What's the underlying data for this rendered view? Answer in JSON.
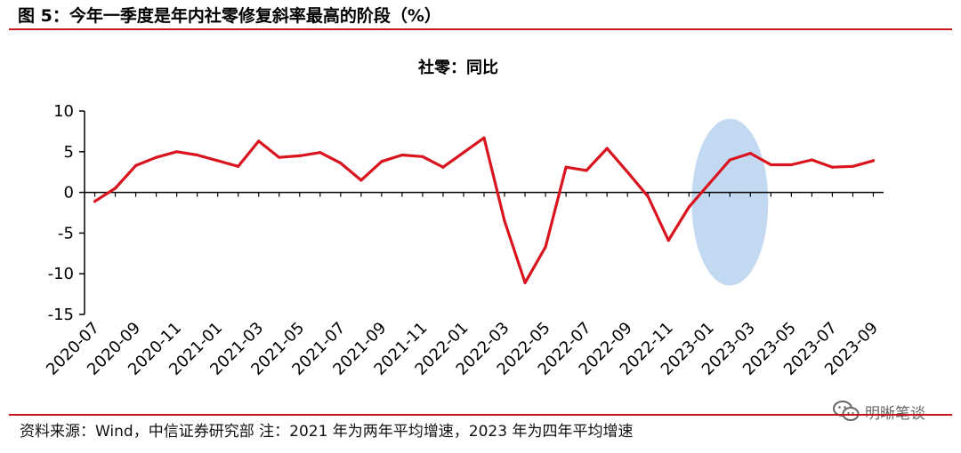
{
  "figure": {
    "title": "图 5：今年一季度是年内社零修复斜率最高的阶段（%）",
    "source": "资料来源：Wind，中信证券研究部  注：2021 年为两年平均增速，2023 年为四年平均增速",
    "watermark": "明晰笔谈",
    "accent_color": "#c8161d",
    "highlight_color": "#bcd5ef"
  },
  "chart_data": {
    "type": "line",
    "title": "社零：同比",
    "xlabel": "",
    "ylabel": "",
    "ylim": [
      -15,
      10
    ],
    "yticks": [
      10,
      5,
      0,
      -5,
      -10,
      -15
    ],
    "grid": false,
    "legend": "none",
    "x": [
      "2020-07",
      "2020-08",
      "2020-09",
      "2020-10",
      "2020-11",
      "2020-12",
      "2021-01",
      "2021-02",
      "2021-03",
      "2021-04",
      "2021-05",
      "2021-06",
      "2021-07",
      "2021-08",
      "2021-09",
      "2021-10",
      "2021-11",
      "2021-12",
      "2022-01",
      "2022-02",
      "2022-03",
      "2022-04",
      "2022-05",
      "2022-06",
      "2022-07",
      "2022-08",
      "2022-09",
      "2022-10",
      "2022-11",
      "2022-12",
      "2023-01",
      "2023-02",
      "2023-03",
      "2023-04",
      "2023-05",
      "2023-06",
      "2023-07",
      "2023-08",
      "2023-09"
    ],
    "xtick_labels": [
      "2020-07",
      "2020-09",
      "2020-11",
      "2021-01",
      "2021-03",
      "2021-05",
      "2021-07",
      "2021-09",
      "2021-11",
      "2022-01",
      "2022-03",
      "2022-05",
      "2022-07",
      "2022-09",
      "2022-11",
      "2023-01",
      "2023-03",
      "2023-05",
      "2023-07",
      "2023-09"
    ],
    "series": [
      {
        "color": "#d9141e",
        "values": [
          -1.1,
          0.5,
          3.3,
          4.3,
          5.0,
          4.6,
          3.9,
          3.2,
          6.3,
          4.3,
          4.5,
          4.9,
          3.6,
          1.5,
          3.8,
          4.6,
          4.4,
          3.1,
          4.9,
          6.7,
          -3.5,
          -11.1,
          -6.7,
          3.1,
          2.7,
          5.4,
          2.5,
          -0.5,
          -5.9,
          -1.8,
          1.1,
          4.0,
          4.8,
          3.4,
          3.4,
          4.0,
          3.1,
          3.2,
          3.9
        ]
      }
    ],
    "highlight": {
      "label_range": [
        "2023-01",
        "2023-03"
      ]
    }
  }
}
